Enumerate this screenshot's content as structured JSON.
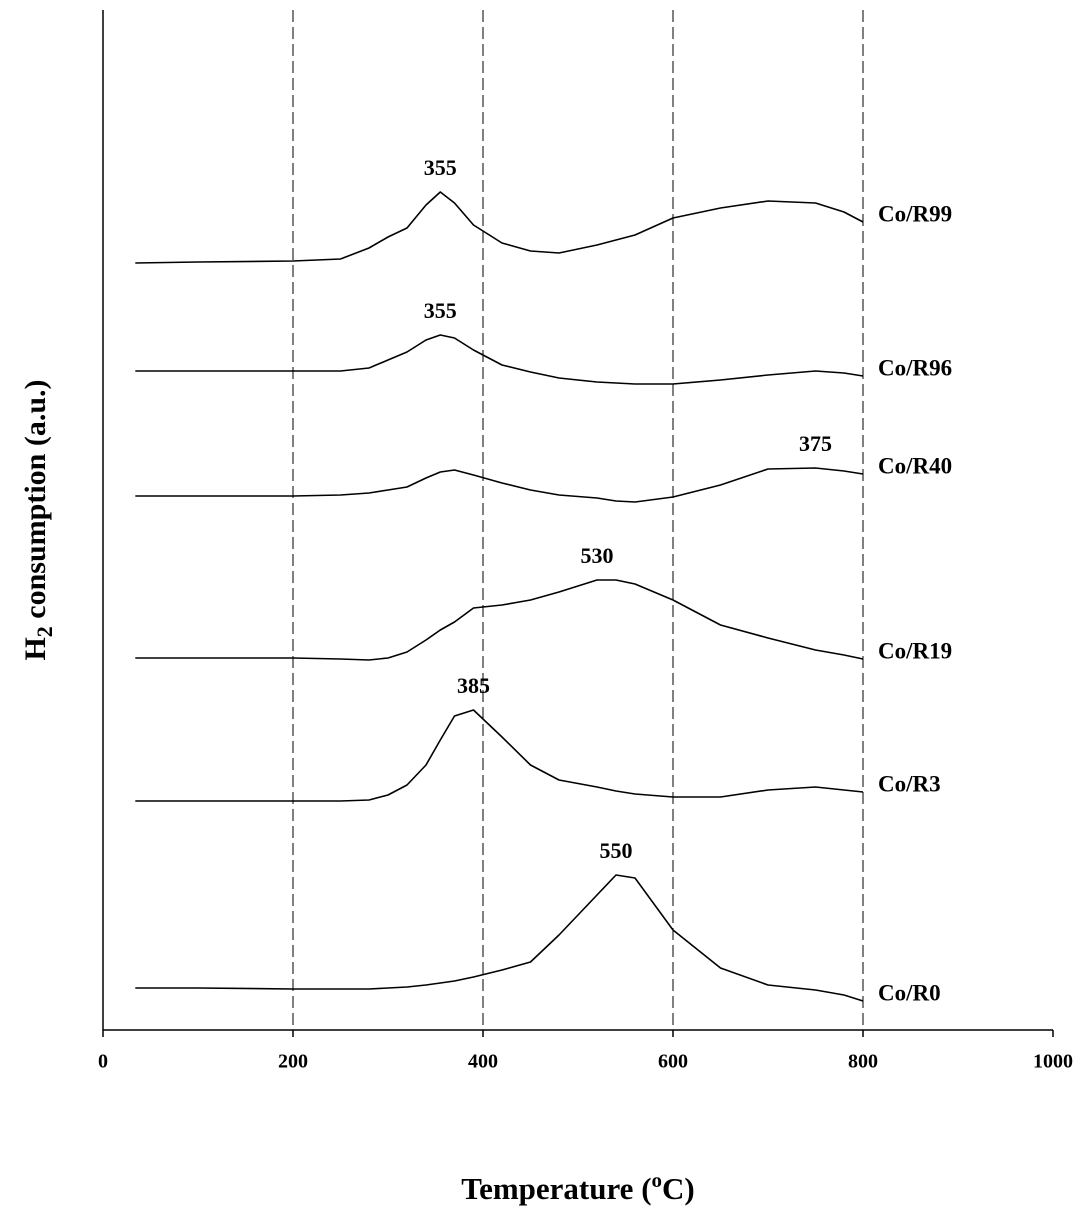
{
  "chart_data": {
    "type": "line",
    "xlabel": [
      "Temperature (",
      "o",
      "C)"
    ],
    "ylabel": [
      "H",
      "2",
      " consumption (a.u.)"
    ],
    "xlim": [
      0,
      1000
    ],
    "xticks": [
      0,
      200,
      400,
      600,
      800,
      1000
    ],
    "ylim": [
      0,
      1020
    ],
    "grid": "dashed",
    "x": [
      34,
      100,
      200,
      250,
      280,
      300,
      320,
      340,
      355,
      370,
      390,
      420,
      450,
      480,
      520,
      540,
      560,
      600,
      650,
      700,
      750,
      780,
      800
    ],
    "series": [
      {
        "name": "Co/R99",
        "color": "#000000",
        "peak_label": "355",
        "values": [
          767,
          768,
          769,
          771,
          782,
          793,
          802,
          825,
          838,
          827,
          805,
          787,
          779,
          777,
          785,
          790,
          795,
          812,
          822,
          829,
          827,
          818,
          808
        ]
      },
      {
        "name": "Co/R96",
        "color": "#000000",
        "peak_label": "355",
        "values": [
          659,
          659,
          659,
          659,
          662,
          670,
          678,
          690,
          695,
          692,
          680,
          665,
          658,
          652,
          648,
          647,
          646,
          646,
          650,
          655,
          659,
          657,
          654
        ]
      },
      {
        "name": "Co/R40",
        "color": "#000000",
        "peak_label": "375",
        "values": [
          534,
          534,
          534,
          535,
          537,
          540,
          543,
          552,
          558,
          560,
          555,
          547,
          540,
          535,
          532,
          529,
          528,
          533,
          545,
          561,
          562,
          559,
          556
        ]
      },
      {
        "name": "Co/R19",
        "color": "#000000",
        "peak_label": "530",
        "values": [
          372,
          372,
          372,
          371,
          370,
          372,
          378,
          390,
          400,
          408,
          422,
          425,
          430,
          438,
          450,
          450,
          446,
          430,
          405,
          392,
          380,
          375,
          371
        ]
      },
      {
        "name": "Co/R3",
        "color": "#000000",
        "peak_label": "385",
        "values": [
          229,
          229,
          229,
          229,
          230,
          235,
          245,
          265,
          290,
          314,
          320,
          293,
          265,
          250,
          243,
          239,
          236,
          233,
          233,
          240,
          243,
          240,
          238
        ]
      },
      {
        "name": "Co/R0",
        "color": "#000000",
        "peak_label": "550",
        "values": [
          42,
          42,
          41,
          41,
          41,
          42,
          43,
          45,
          47,
          49,
          53,
          60,
          68,
          95,
          135,
          155,
          152,
          100,
          62,
          45,
          40,
          35,
          29
        ]
      }
    ]
  }
}
